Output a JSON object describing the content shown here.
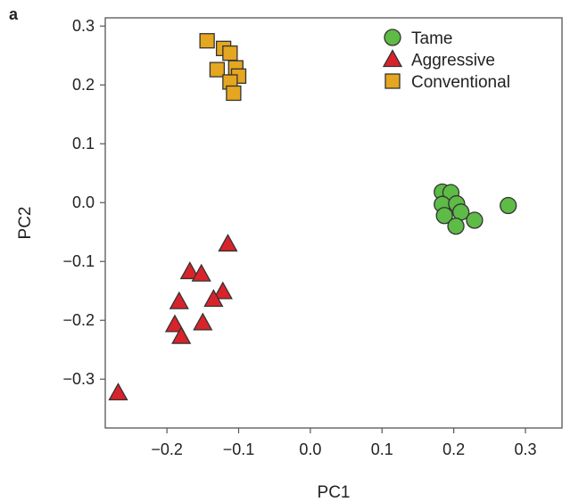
{
  "panel_label": "a",
  "chart_data": {
    "type": "scatter",
    "xlabel": "PC1",
    "ylabel": "PC2",
    "xlim": [
      -0.286,
      0.351
    ],
    "ylim": [
      -0.383,
      0.314
    ],
    "xticks": [
      -0.2,
      -0.1,
      0.0,
      0.1,
      0.2,
      0.3
    ],
    "xtick_labels": [
      "−0.2",
      "−0.1",
      "0.0",
      "0.1",
      "0.2",
      "0.3"
    ],
    "yticks": [
      0.3,
      0.2,
      0.1,
      0.0,
      -0.1,
      -0.2,
      -0.3
    ],
    "ytick_labels": [
      "0.3",
      "0.2",
      "0.1",
      "0.0",
      "−0.1",
      "−0.2",
      "−0.3"
    ],
    "grid": false,
    "legend_position": "top-right",
    "series": [
      {
        "name": "Tame",
        "marker": "circle",
        "color": "#5dbb46",
        "points": [
          [
            0.184,
            0.018
          ],
          [
            0.196,
            0.017
          ],
          [
            0.184,
            -0.003
          ],
          [
            0.187,
            -0.022
          ],
          [
            0.204,
            -0.002
          ],
          [
            0.21,
            -0.016
          ],
          [
            0.229,
            -0.03
          ],
          [
            0.203,
            -0.04
          ],
          [
            0.276,
            -0.005
          ]
        ]
      },
      {
        "name": "Aggressive",
        "marker": "triangle",
        "color": "#d9232a",
        "points": [
          [
            -0.115,
            -0.07
          ],
          [
            -0.168,
            -0.117
          ],
          [
            -0.152,
            -0.121
          ],
          [
            -0.122,
            -0.151
          ],
          [
            -0.135,
            -0.164
          ],
          [
            -0.183,
            -0.168
          ],
          [
            -0.15,
            -0.204
          ],
          [
            -0.189,
            -0.207
          ],
          [
            -0.18,
            -0.227
          ],
          [
            -0.268,
            -0.323
          ]
        ]
      },
      {
        "name": "Conventional",
        "marker": "square",
        "color": "#e5a620",
        "points": [
          [
            -0.144,
            0.275
          ],
          [
            -0.121,
            0.262
          ],
          [
            -0.112,
            0.254
          ],
          [
            -0.13,
            0.226
          ],
          [
            -0.104,
            0.229
          ],
          [
            -0.1,
            0.215
          ],
          [
            -0.112,
            0.205
          ],
          [
            -0.107,
            0.186
          ]
        ]
      }
    ]
  }
}
